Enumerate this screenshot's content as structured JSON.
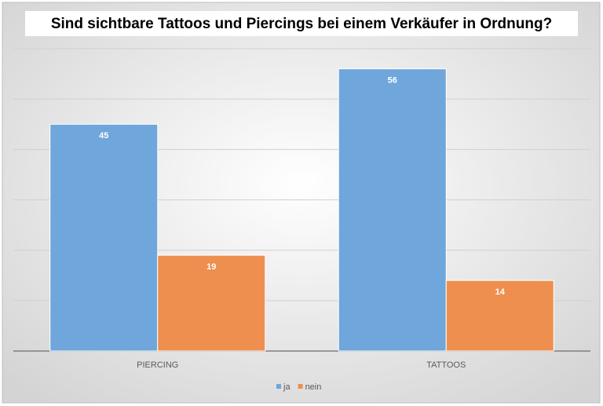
{
  "chart_data": {
    "type": "bar",
    "title": "Sind sichtbare Tattoos und Piercings bei einem Verkäufer in Ordnung?",
    "categories": [
      "PIERCING",
      "TATTOOS"
    ],
    "series": [
      {
        "name": "ja",
        "color": "#6fa6db",
        "values": [
          45,
          56
        ]
      },
      {
        "name": "nein",
        "color": "#ee8f4f",
        "values": [
          19,
          14
        ]
      }
    ],
    "ylim": [
      0,
      60
    ],
    "yticks": [
      0,
      10,
      20,
      30,
      40,
      50,
      60
    ],
    "grid": true,
    "legend": "bottom"
  }
}
